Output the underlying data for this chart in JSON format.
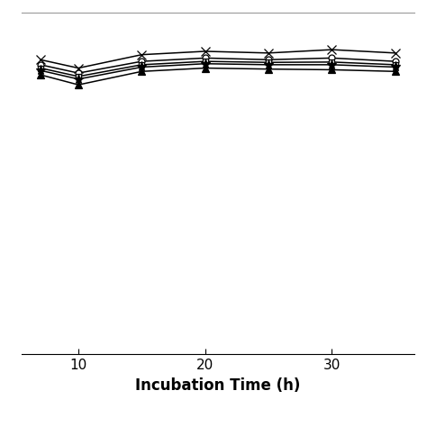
{
  "xlabel": "Incubation Time (h)",
  "xlim": [
    5.5,
    36.5
  ],
  "ylim": [
    0.0,
    1.02
  ],
  "xticks": [
    10,
    20,
    30
  ],
  "xtick_fontsize": 11,
  "xlabel_fontsize": 12,
  "background_color": "#ffffff",
  "series": [
    {
      "marker": "x",
      "markersize": 7,
      "markerfacecolor": "black",
      "linewidth": 1.1,
      "x": [
        7,
        10,
        15,
        20,
        25,
        30,
        35
      ],
      "y": [
        0.88,
        0.855,
        0.895,
        0.905,
        0.9,
        0.91,
        0.9
      ]
    },
    {
      "marker": "o",
      "markersize": 5,
      "markerfacecolor": "white",
      "linewidth": 1.1,
      "x": [
        7,
        10,
        15,
        20,
        25,
        30,
        35
      ],
      "y": [
        0.865,
        0.84,
        0.875,
        0.885,
        0.88,
        0.885,
        0.875
      ]
    },
    {
      "marker": "s",
      "markersize": 5,
      "markerfacecolor": "white",
      "linewidth": 1.1,
      "x": [
        7,
        10,
        15,
        20,
        25,
        30,
        35
      ],
      "y": [
        0.855,
        0.83,
        0.865,
        0.875,
        0.872,
        0.873,
        0.865
      ]
    },
    {
      "marker": "*",
      "markersize": 8,
      "markerfacecolor": "black",
      "linewidth": 1.1,
      "x": [
        7,
        10,
        15,
        20,
        25,
        30,
        35
      ],
      "y": [
        0.848,
        0.822,
        0.858,
        0.868,
        0.865,
        0.865,
        0.858
      ]
    },
    {
      "marker": "^",
      "markersize": 6,
      "markerfacecolor": "black",
      "linewidth": 1.1,
      "x": [
        7,
        10,
        15,
        20,
        25,
        30,
        35
      ],
      "y": [
        0.835,
        0.805,
        0.845,
        0.855,
        0.852,
        0.85,
        0.845
      ]
    }
  ]
}
